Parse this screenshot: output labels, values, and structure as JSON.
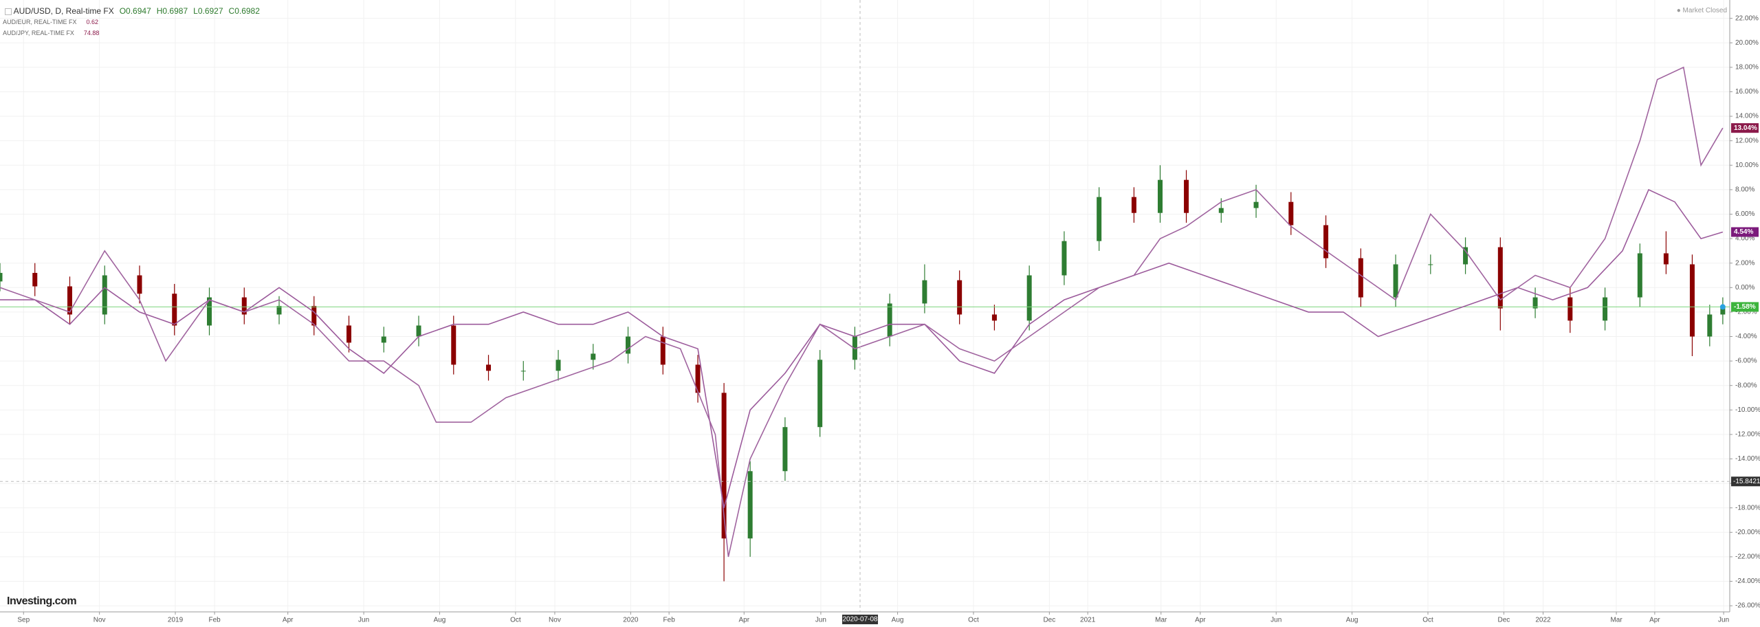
{
  "chart_data": {
    "type": "candlestick",
    "title": "AUD/USD, D, Real-time FX",
    "ohlc": [
      {
        "label": "O",
        "value": 0.6947
      },
      {
        "label": "H",
        "value": 0.6987
      },
      {
        "label": "L",
        "value": 0.6927
      },
      {
        "label": "C",
        "value": 0.6982
      }
    ],
    "status": "Market Closed",
    "brand": "Investing.com",
    "grid": true,
    "xlim": [
      0,
      198.3
    ],
    "ylim": [
      -26.5,
      23.5
    ],
    "xticks": [
      {
        "value": 2.7,
        "label": "Sep"
      },
      {
        "value": 11.4,
        "label": "Nov"
      },
      {
        "value": 20.1,
        "label": "2019"
      },
      {
        "value": 24.6,
        "label": "Feb"
      },
      {
        "value": 33.0,
        "label": "Apr"
      },
      {
        "value": 41.7,
        "label": "Jun"
      },
      {
        "value": 50.4,
        "label": "Aug"
      },
      {
        "value": 59.1,
        "label": "Oct"
      },
      {
        "value": 63.6,
        "label": "Nov"
      },
      {
        "value": 72.3,
        "label": "2020"
      },
      {
        "value": 76.7,
        "label": "Feb"
      },
      {
        "value": 85.3,
        "label": "Apr"
      },
      {
        "value": 94.1,
        "label": "Jun"
      },
      {
        "value": 102.9,
        "label": "Aug"
      },
      {
        "value": 111.6,
        "label": "Oct"
      },
      {
        "value": 120.3,
        "label": "Dec"
      },
      {
        "value": 124.7,
        "label": "2021"
      },
      {
        "value": 133.1,
        "label": "Mar"
      },
      {
        "value": 137.6,
        "label": "Apr"
      },
      {
        "value": 146.3,
        "label": "Jun"
      },
      {
        "value": 155.0,
        "label": "Aug"
      },
      {
        "value": 163.7,
        "label": "Oct"
      },
      {
        "value": 172.4,
        "label": "Dec"
      },
      {
        "value": 176.9,
        "label": "2022"
      },
      {
        "value": 185.3,
        "label": "Mar"
      },
      {
        "value": 189.7,
        "label": "Apr"
      },
      {
        "value": 197.6,
        "label": "Jun"
      }
    ],
    "yticks": [
      {
        "value": 22,
        "label": "22.00%"
      },
      {
        "value": 20,
        "label": "20.00%"
      },
      {
        "value": 18,
        "label": "18.00%"
      },
      {
        "value": 16,
        "label": "16.00%"
      },
      {
        "value": 14,
        "label": "14.00%"
      },
      {
        "value": 12,
        "label": "12.00%"
      },
      {
        "value": 10,
        "label": "10.00%"
      },
      {
        "value": 8,
        "label": "8.00%"
      },
      {
        "value": 6,
        "label": "6.00%"
      },
      {
        "value": 4,
        "label": "4.00%"
      },
      {
        "value": 2,
        "label": "2.00%"
      },
      {
        "value": 0,
        "label": "0.00%"
      },
      {
        "value": -2,
        "label": "-2.00%"
      },
      {
        "value": -4,
        "label": "-4.00%"
      },
      {
        "value": -6,
        "label": "-6.00%"
      },
      {
        "value": -8,
        "label": "-8.00%"
      },
      {
        "value": -10,
        "label": "-10.00%"
      },
      {
        "value": -12,
        "label": "-12.00%"
      },
      {
        "value": -14,
        "label": "-14.00%"
      },
      {
        "value": -16,
        "label": "-16.00%"
      },
      {
        "value": -18,
        "label": "-18.00%"
      },
      {
        "value": -20,
        "label": "-20.00%"
      },
      {
        "value": -22,
        "label": "-22.00%"
      },
      {
        "value": -24,
        "label": "-24.00%"
      },
      {
        "value": -26,
        "label": "-26.00%"
      }
    ],
    "crosshair": {
      "x": {
        "value": 98.6,
        "label": "2020-07-08"
      },
      "y": -15.8421
    },
    "series": [
      {
        "name": "AUD/USD",
        "type": "candlestick",
        "up_color": "#2e7d32",
        "down_color": "#8b0000",
        "last_color": "#3cb43c",
        "last_label": "-1.58%",
        "x": [
          0,
          4,
          8,
          12,
          16,
          20,
          24,
          28,
          32,
          36,
          40,
          44,
          48,
          52,
          56,
          60,
          64,
          68,
          72,
          76,
          80,
          83,
          86,
          90,
          94,
          98,
          102,
          106,
          110,
          114,
          118,
          122,
          126,
          130,
          133,
          136,
          140,
          144,
          148,
          152,
          156,
          160,
          164,
          168,
          172,
          176,
          180,
          184,
          188,
          191,
          194,
          196,
          197.5
        ],
        "open": [
          0.5,
          1.2,
          0.1,
          -2.2,
          1.0,
          -0.5,
          -3.1,
          -0.8,
          -2.2,
          -1.5,
          -3.1,
          -4.5,
          -4.0,
          -3.1,
          -6.3,
          -6.8,
          -6.8,
          -5.9,
          -5.4,
          -4.0,
          -6.3,
          -8.6,
          -20.5,
          -15.0,
          -11.4,
          -5.9,
          -4.0,
          -1.3,
          0.6,
          -2.2,
          -2.7,
          1.0,
          3.8,
          7.4,
          6.1,
          8.8,
          6.1,
          6.5,
          7.0,
          5.1,
          2.4,
          -0.8,
          1.9,
          1.9,
          3.3,
          -1.7,
          -0.8,
          -2.7,
          -0.8,
          2.8,
          1.9,
          -4.0,
          -2.2
        ],
        "high": [
          2.0,
          2.0,
          0.9,
          1.8,
          1.8,
          0.3,
          0.0,
          0.0,
          -0.7,
          -0.7,
          -2.3,
          -3.2,
          -2.3,
          -2.3,
          -5.5,
          -6.0,
          -5.1,
          -4.6,
          -3.2,
          -3.2,
          -5.5,
          -7.8,
          -14.2,
          -10.6,
          -5.1,
          -3.2,
          -0.5,
          1.9,
          1.4,
          -1.4,
          1.8,
          4.6,
          8.2,
          8.2,
          10.0,
          9.6,
          7.3,
          8.4,
          7.8,
          5.9,
          3.2,
          2.7,
          2.7,
          4.1,
          4.1,
          0.0,
          0.0,
          0.0,
          3.6,
          4.6,
          2.7,
          -1.4,
          -0.8
        ],
        "low": [
          -0.3,
          -0.7,
          -3.0,
          -3.0,
          -1.3,
          -3.9,
          -3.9,
          -3.0,
          -3.0,
          -3.9,
          -5.3,
          -5.3,
          -4.8,
          -7.1,
          -7.6,
          -7.6,
          -7.6,
          -6.7,
          -6.2,
          -7.1,
          -9.4,
          -24.0,
          -22.0,
          -15.8,
          -12.2,
          -6.7,
          -4.8,
          -2.1,
          -3.0,
          -3.5,
          -3.5,
          0.2,
          3.0,
          5.3,
          5.3,
          5.3,
          5.3,
          5.7,
          4.3,
          1.6,
          -1.6,
          -1.6,
          1.1,
          1.1,
          -3.5,
          -2.5,
          -3.7,
          -3.5,
          -1.6,
          1.1,
          -5.6,
          -4.8,
          -3.0
        ],
        "close": [
          1.2,
          0.1,
          -2.2,
          1.0,
          -0.5,
          -3.1,
          -0.8,
          -2.2,
          -1.5,
          -3.1,
          -4.5,
          -4.0,
          -3.1,
          -6.3,
          -6.8,
          -6.8,
          -5.9,
          -5.4,
          -4.0,
          -6.3,
          -8.6,
          -20.5,
          -15.0,
          -11.4,
          -5.9,
          -4.0,
          -1.3,
          0.6,
          -2.2,
          -2.7,
          1.0,
          3.8,
          7.4,
          6.1,
          8.8,
          6.1,
          6.5,
          7.0,
          5.1,
          2.4,
          -0.8,
          1.9,
          1.9,
          3.3,
          -1.7,
          -0.8,
          -2.7,
          -0.8,
          2.8,
          1.9,
          -4.0,
          -2.2,
          -1.58
        ]
      },
      {
        "name": "AUD/EUR, REAL-TIME FX",
        "quote": 0.62,
        "type": "line",
        "color": "#9b5a9b",
        "last_color": "#7b1a7b",
        "last_label": "4.54%",
        "x": [
          0,
          4,
          8,
          12,
          16,
          20,
          24,
          28,
          32,
          36,
          40,
          44,
          48,
          52,
          56,
          60,
          64,
          68,
          72,
          76,
          80,
          83,
          86,
          90,
          94,
          98,
          102,
          106,
          110,
          114,
          118,
          122,
          126,
          130,
          134,
          138,
          142,
          146,
          150,
          154,
          158,
          162,
          166,
          170,
          174,
          178,
          182,
          186,
          189,
          192,
          195,
          197.5
        ],
        "values": [
          -1,
          -1,
          -3,
          0,
          -2,
          -3,
          -1,
          -2,
          0,
          -2,
          -5,
          -7,
          -4,
          -3,
          -3,
          -2,
          -3,
          -3,
          -2,
          -4,
          -5,
          -18,
          -10,
          -7,
          -3,
          -4,
          -3,
          -3,
          -6,
          -7,
          -3,
          -1,
          0,
          1,
          2,
          1,
          0,
          -1,
          -2,
          -2,
          -4,
          -3,
          -2,
          -1,
          0,
          -1,
          0,
          3,
          8,
          7,
          4,
          4.54
        ]
      },
      {
        "name": "AUD/JPY, REAL-TIME FX",
        "quote": 74.88,
        "type": "line",
        "color": "#a0649f",
        "last_color": "#8b1a4a",
        "last_label": "13.04%",
        "x": [
          0,
          4,
          8,
          12,
          16,
          19,
          24,
          28,
          32,
          36,
          40,
          44,
          48,
          50,
          54,
          58,
          62,
          66,
          70,
          74,
          78,
          82,
          83.5,
          86,
          90,
          94,
          98,
          102,
          106,
          110,
          114,
          118,
          122,
          126,
          130,
          133,
          136,
          140,
          144,
          148,
          152,
          156,
          160,
          164,
          168,
          172,
          176,
          180,
          184,
          188,
          190,
          193,
          195,
          197.5
        ],
        "values": [
          0,
          -1,
          -2,
          3,
          -1,
          -6,
          -1,
          -2,
          -1,
          -3,
          -6,
          -6,
          -8,
          -11,
          -11,
          -9,
          -8,
          -7,
          -6,
          -4,
          -5,
          -12,
          -22,
          -14,
          -8,
          -3,
          -5,
          -4,
          -3,
          -5,
          -6,
          -4,
          -2,
          0,
          1,
          4,
          5,
          7,
          8,
          5,
          3,
          1,
          -1,
          6,
          3,
          -1,
          1,
          0,
          4,
          12,
          17,
          18,
          10,
          13.04
        ]
      }
    ]
  }
}
